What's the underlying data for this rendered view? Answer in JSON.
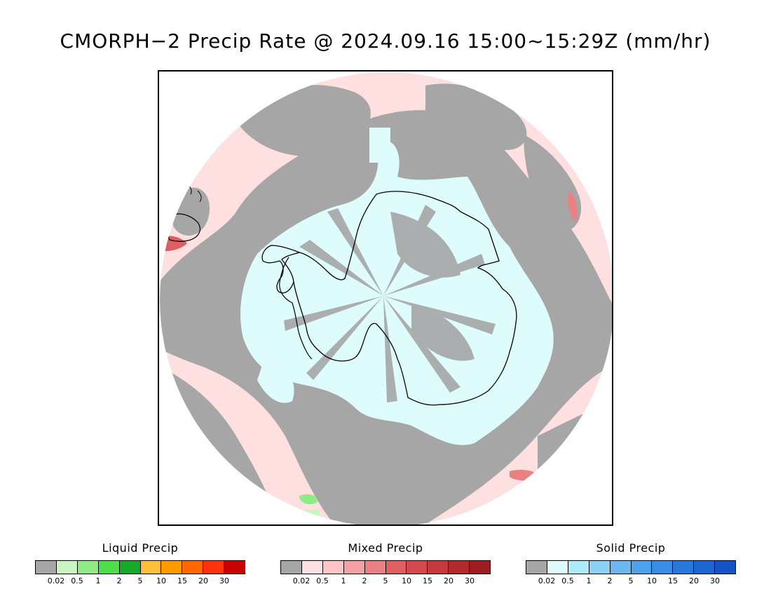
{
  "title": "CMORPH−2 Precip Rate @ 2024.09.16 15:00~15:29Z (mm/hr)",
  "colors": {
    "no_precip": "#a6a6a6",
    "background_light_pink": "#ffe0e0",
    "antarctic_light_blue": "#dffcfd",
    "coastline": "#000000"
  },
  "legends": [
    {
      "id": "liquid",
      "title": "Liquid Precip",
      "colors": [
        "#a6a6a6",
        "#c8f5c0",
        "#8feb86",
        "#4ddc4a",
        "#1aa82a",
        "#ffbf3a",
        "#ff9a00",
        "#ff6a00",
        "#ff3310",
        "#c80000"
      ],
      "ticks": [
        "0.02",
        "0.5",
        "1",
        "2",
        "5",
        "10",
        "15",
        "20",
        "30"
      ]
    },
    {
      "id": "mixed",
      "title": "Mixed Precip",
      "colors": [
        "#a6a6a6",
        "#ffe0e0",
        "#ffc4c6",
        "#f4a2a6",
        "#e98084",
        "#de5f63",
        "#d24a4e",
        "#c43a3d",
        "#b22a2d",
        "#9c1e22"
      ],
      "ticks": [
        "0.02",
        "0.5",
        "1",
        "2",
        "5",
        "10",
        "15",
        "20",
        "30"
      ]
    },
    {
      "id": "solid",
      "title": "Solid Precip",
      "colors": [
        "#a6a6a6",
        "#dffcfd",
        "#aeeaf8",
        "#8cd0f6",
        "#6cb8f2",
        "#4ea2ec",
        "#3a8ce4",
        "#2a78dc",
        "#1e66d2",
        "#1454c4"
      ],
      "ticks": [
        "0.02",
        "0.5",
        "1",
        "2",
        "5",
        "10",
        "15",
        "20",
        "30"
      ]
    }
  ]
}
